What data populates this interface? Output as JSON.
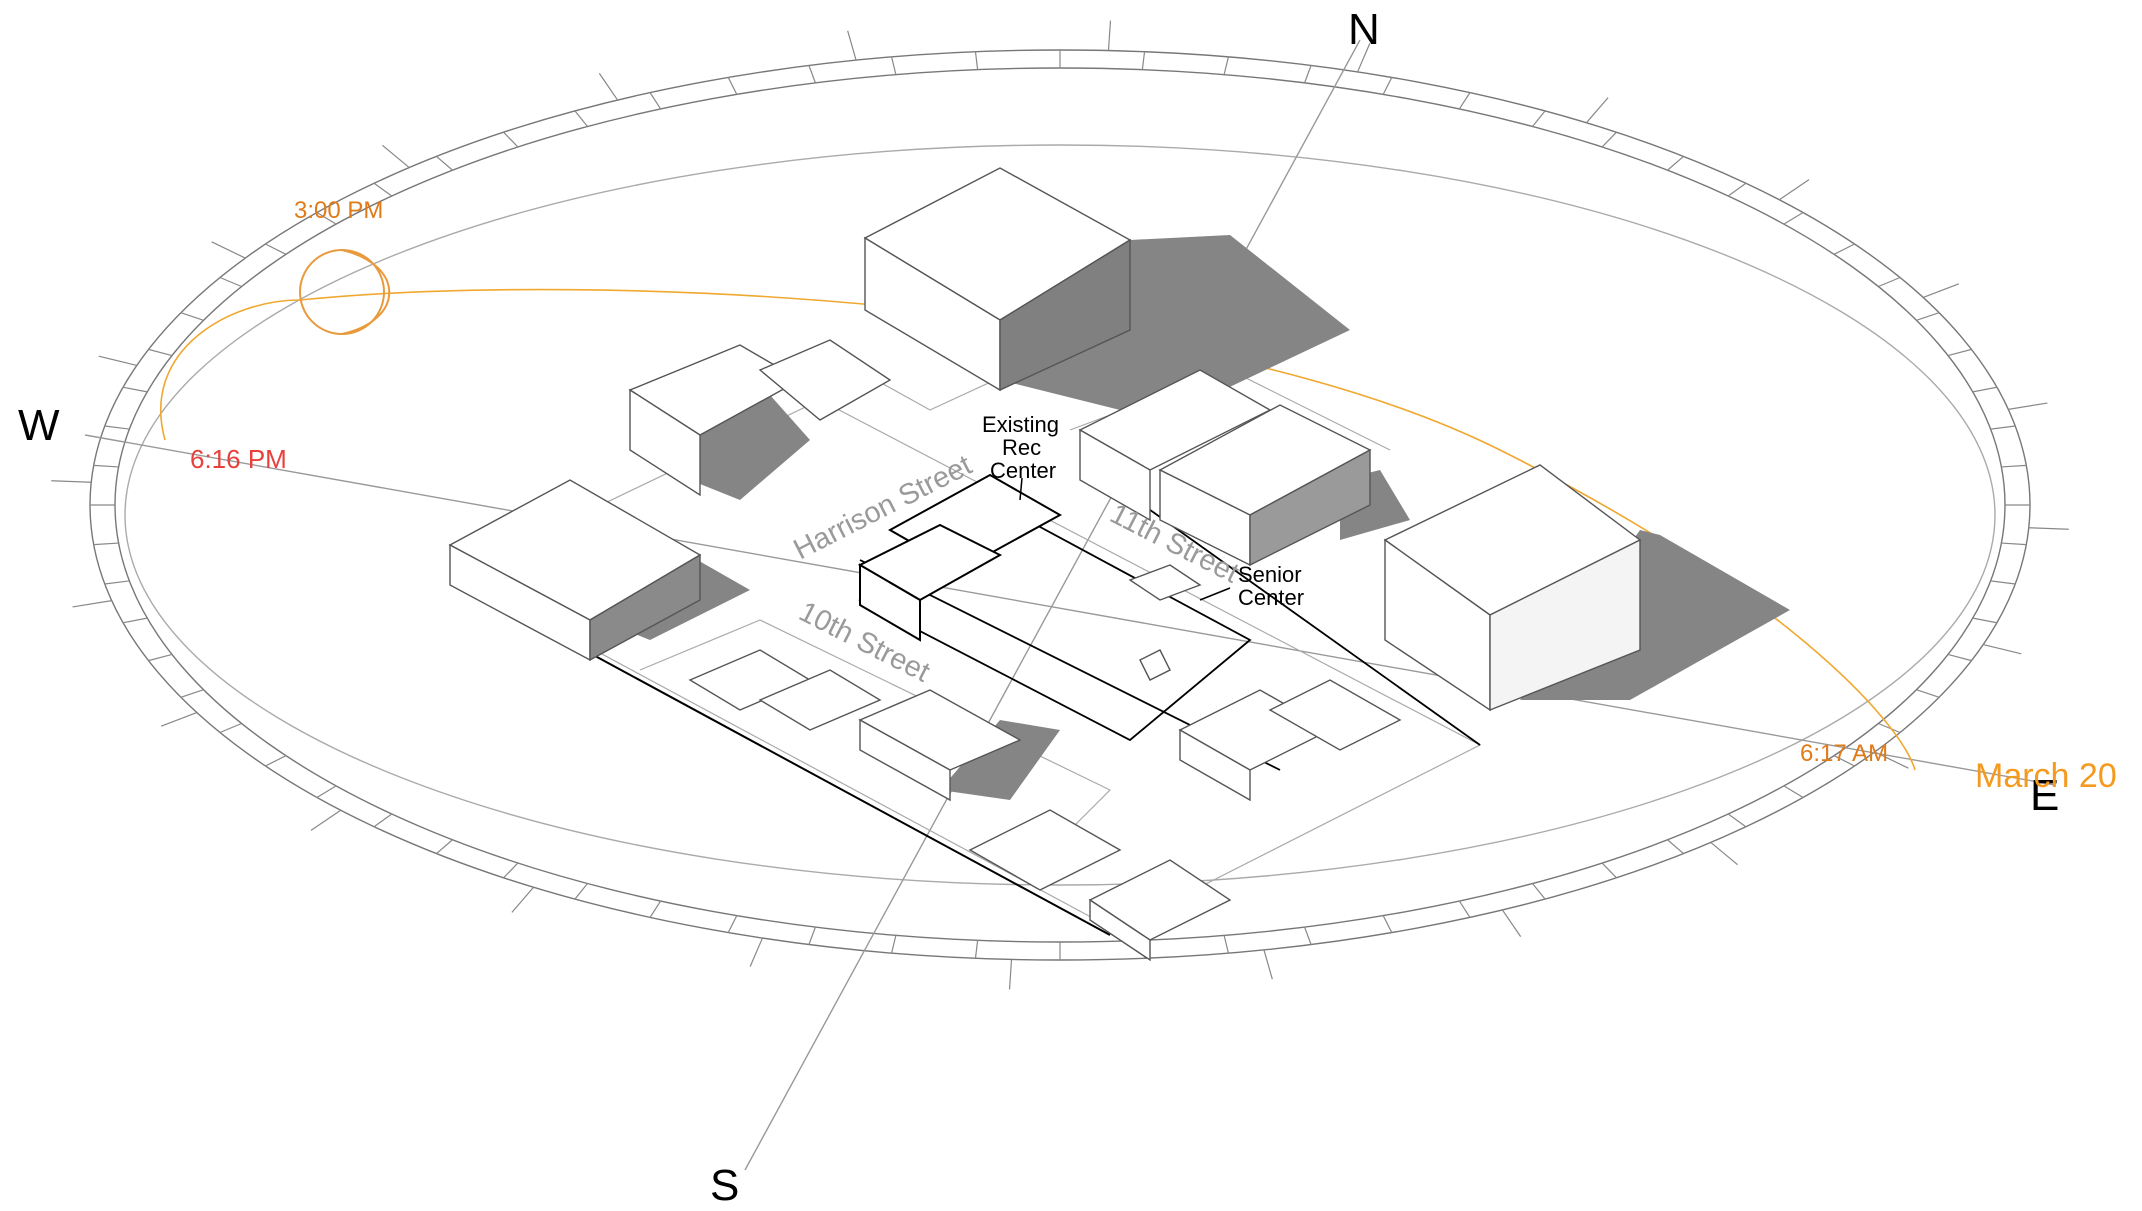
{
  "compass": {
    "north": "N",
    "south": "S",
    "east": "E",
    "west": "W"
  },
  "streets": {
    "harrison": "Harrison Street",
    "eleventh": "11th Street",
    "tenth": "10th Street"
  },
  "labels": {
    "rec_center_line1": "Existing",
    "rec_center_line2": "Rec",
    "rec_center_line3": "Center",
    "senior_center_line1": "Senior",
    "senior_center_line2": "Center"
  },
  "sun_path": {
    "date": "March 20",
    "sunrise": "6:17 AM",
    "sunset": "6:16 PM",
    "sun_position_time": "3:00 PM"
  },
  "colors": {
    "sun_path": "#f0a830",
    "afternoon_time": "#e07b18",
    "sunset_time": "#e8403c",
    "date": "#f39a1f",
    "shadow": "#858585"
  }
}
